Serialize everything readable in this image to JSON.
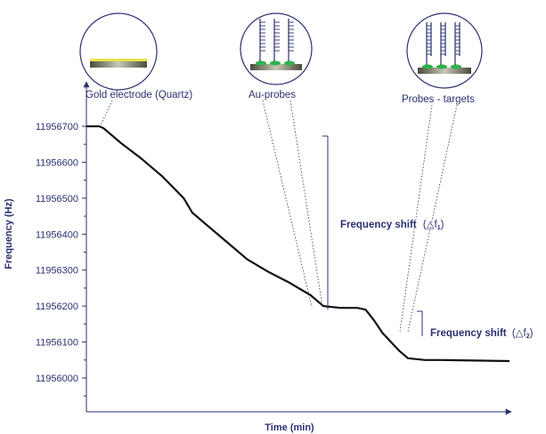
{
  "chart_data": {
    "type": "line",
    "xlabel": "Time (min)",
    "ylabel": "Frequency (Hz)",
    "ylim": [
      11955950,
      11956720
    ],
    "xlim": [
      0,
      100
    ],
    "y_ticks": [
      11956700,
      11956600,
      11956500,
      11956400,
      11956300,
      11956200,
      11956100,
      11956000
    ],
    "grid": false,
    "series": [
      {
        "x": [
          0,
          3,
          4,
          8,
          13,
          18,
          23,
          25,
          28,
          33,
          38,
          43,
          48,
          53,
          56,
          60,
          62,
          64,
          66,
          68,
          70,
          72,
          74,
          76,
          80,
          84,
          100
        ],
        "values": [
          11956700,
          11956700,
          11956695,
          11956655,
          11956610,
          11956560,
          11956500,
          11956460,
          11956430,
          11956380,
          11956330,
          11956295,
          11956265,
          11956230,
          11956200,
          11956195,
          11956195,
          11956195,
          11956190,
          11956160,
          11956125,
          11956100,
          11956075,
          11956055,
          11956050,
          11956050,
          11956047
        ]
      }
    ],
    "annotations": {
      "stages": [
        {
          "label": "Gold electrode (Quartz)",
          "icon": "gold-electrode-icon"
        },
        {
          "label": "Au-probes",
          "icon": "au-probes-icon"
        },
        {
          "label": "Probes - targets",
          "icon": "probes-targets-icon"
        }
      ],
      "shift1": {
        "text": "Frequency shift",
        "symbol": "(△f",
        "sub": "1",
        "close": ")"
      },
      "shift2": {
        "text": "Frequency shift",
        "symbol": "(△f",
        "sub": "2",
        "close": ")"
      }
    },
    "colors": {
      "line": "#111111",
      "axis": "#2a3170",
      "text": "#2a3170",
      "gold": "#e8e04a",
      "probe_cap": "#2db24a",
      "probe": "#2a3170",
      "circle": "#2a3170"
    }
  }
}
